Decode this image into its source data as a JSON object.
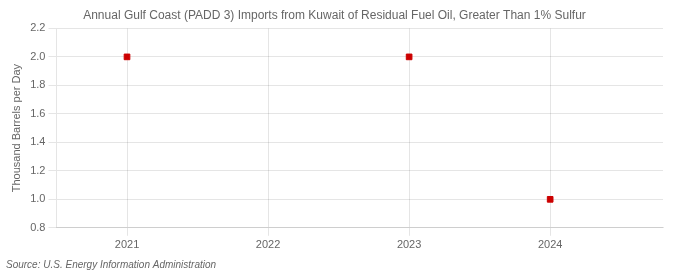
{
  "chart_data": {
    "type": "scatter",
    "title": "Annual Gulf Coast (PADD 3) Imports from Kuwait of Residual Fuel Oil, Greater Than 1% Sulfur",
    "ylabel": "Thousand Barrels per Day",
    "source": "Source: U.S. Energy Information Administration",
    "x": [
      2021,
      2023,
      2024
    ],
    "values": [
      2.0,
      2.0,
      1.0
    ],
    "color": "#cc0000",
    "marker": "square",
    "xlim": [
      2020.5,
      2024.8
    ],
    "xticks": [
      2021,
      2022,
      2023,
      2024
    ],
    "ylim": [
      0.8,
      2.2
    ],
    "yticks": [
      0.8,
      {
        "value": 1.0,
        "label": "1.0"
      },
      1.2,
      1.4,
      1.6,
      1.8,
      {
        "value": 2.0,
        "label": "2.0"
      },
      2.2
    ],
    "grid": true
  }
}
